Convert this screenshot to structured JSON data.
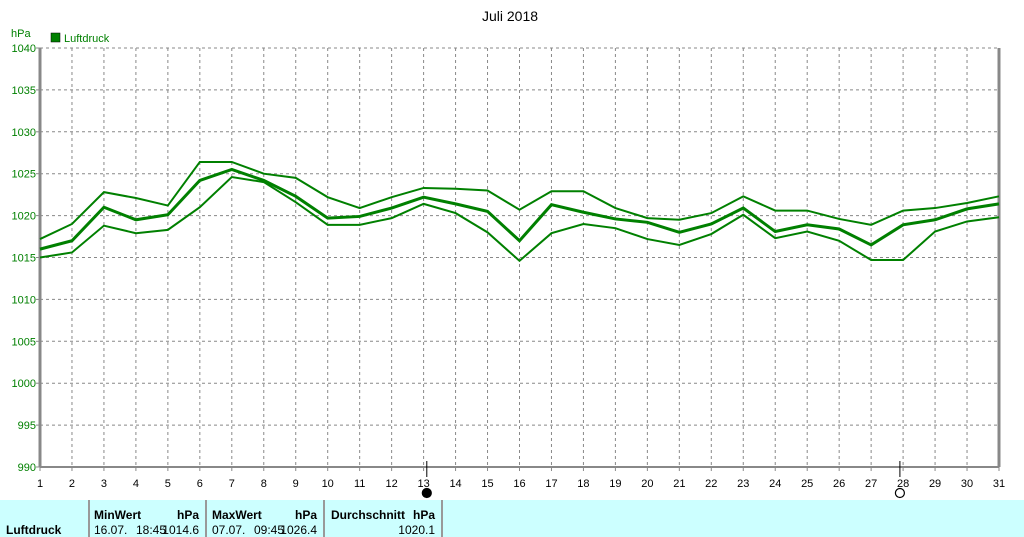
{
  "chart_data": {
    "type": "line",
    "title": "Juli 2018",
    "ylabel": "hPa",
    "xlabel": "",
    "ylim": [
      990,
      1040
    ],
    "xlim": [
      1,
      31
    ],
    "yticks": [
      990,
      995,
      1000,
      1005,
      1010,
      1015,
      1020,
      1025,
      1030,
      1035,
      1040
    ],
    "x": [
      1,
      2,
      3,
      4,
      5,
      6,
      7,
      8,
      9,
      10,
      11,
      12,
      13,
      14,
      15,
      16,
      17,
      18,
      19,
      20,
      21,
      22,
      23,
      24,
      25,
      26,
      27,
      28,
      29,
      30,
      31
    ],
    "grid": true,
    "legend": {
      "label": "Luftdruck",
      "placement": "top-left"
    },
    "color": "#008000",
    "series": [
      {
        "name": "Max",
        "values": [
          1017.2,
          1019,
          1022.8,
          1022.1,
          1021.2,
          1026.4,
          1026.4,
          1025,
          1024.5,
          1022.2,
          1020.9,
          1022.2,
          1023.3,
          1023.2,
          1023,
          1020.7,
          1022.9,
          1022.9,
          1020.9,
          1019.7,
          1019.5,
          1020.3,
          1022.3,
          1020.6,
          1020.6,
          1019.6,
          1018.9,
          1020.6,
          1020.9,
          1021.5,
          1022.3
        ]
      },
      {
        "name": "Durchschnitt",
        "values": [
          1016,
          1017,
          1021,
          1019.5,
          1020.1,
          1024.2,
          1025.5,
          1024.2,
          1022.3,
          1019.7,
          1019.9,
          1020.9,
          1022.2,
          1021.4,
          1020.5,
          1017,
          1021.3,
          1020.4,
          1019.6,
          1019.2,
          1018,
          1019,
          1020.9,
          1018.1,
          1018.9,
          1018.4,
          1016.5,
          1018.9,
          1019.5,
          1020.8,
          1021.4
        ]
      },
      {
        "name": "Min",
        "values": [
          1015,
          1015.6,
          1018.8,
          1017.9,
          1018.3,
          1021,
          1024.6,
          1024,
          1021.6,
          1018.9,
          1018.9,
          1019.7,
          1021.4,
          1020.3,
          1018,
          1014.6,
          1017.9,
          1019,
          1018.5,
          1017.2,
          1016.5,
          1017.8,
          1020.1,
          1017.3,
          1018.1,
          1017,
          1014.7,
          1014.7,
          1018.1,
          1019.3,
          1019.8
        ]
      }
    ],
    "moon_markers": [
      {
        "day": 13.1,
        "phase": "new-moon"
      },
      {
        "day": 27.9,
        "phase": "full-moon"
      }
    ]
  },
  "table": {
    "row_label": "Luftdruck",
    "min": {
      "header": "MinWert",
      "unit": "hPa",
      "date": "16.07.",
      "time": "18:45",
      "value": "1014.6"
    },
    "max": {
      "header": "MaxWert",
      "unit": "hPa",
      "date": "07.07.",
      "time": "09:45",
      "value": "1026.4"
    },
    "avg": {
      "header": "Durchschnitt",
      "unit": "hPa",
      "value": "1020.1"
    }
  }
}
